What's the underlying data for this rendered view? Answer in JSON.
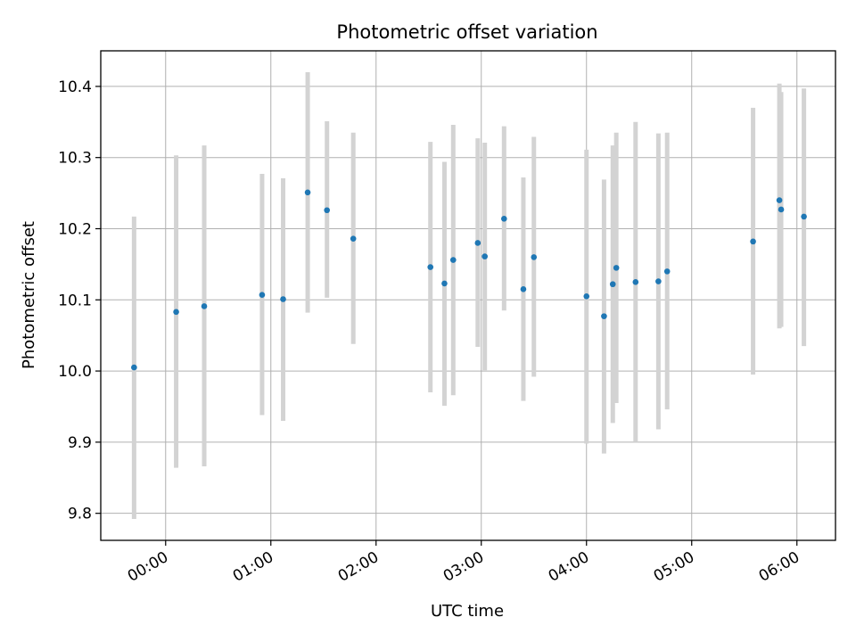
{
  "chart_data": {
    "type": "scatter",
    "title": "Photometric offset variation",
    "xlabel": "UTC time",
    "ylabel": "Photometric offset",
    "x_ticks": [
      "00:00",
      "01:00",
      "02:00",
      "03:00",
      "04:00",
      "05:00",
      "06:00"
    ],
    "y_ticks": [
      "9.8",
      "9.9",
      "10.0",
      "10.1",
      "10.2",
      "10.3",
      "10.4"
    ],
    "xlim": [
      "23:23",
      "06:22"
    ],
    "ylim": [
      9.762,
      10.45
    ],
    "grid": true,
    "colors": {
      "point": "#1f77b4",
      "errorbar": "#d3d3d3",
      "grid": "#b0b0b0",
      "axes": "#000000"
    },
    "points": [
      {
        "x": "23:42",
        "y": 10.005,
        "err_low": 9.792,
        "err_high": 10.217
      },
      {
        "x": "00:06",
        "y": 10.083,
        "err_low": 9.864,
        "err_high": 10.303
      },
      {
        "x": "00:22",
        "y": 10.091,
        "err_low": 9.866,
        "err_high": 10.317
      },
      {
        "x": "00:55",
        "y": 10.107,
        "err_low": 9.938,
        "err_high": 10.277
      },
      {
        "x": "01:07",
        "y": 10.101,
        "err_low": 9.93,
        "err_high": 10.271
      },
      {
        "x": "01:21",
        "y": 10.251,
        "err_low": 10.082,
        "err_high": 10.42
      },
      {
        "x": "01:32",
        "y": 10.226,
        "err_low": 10.103,
        "err_high": 10.351
      },
      {
        "x": "01:47",
        "y": 10.186,
        "err_low": 10.038,
        "err_high": 10.335
      },
      {
        "x": "02:31",
        "y": 10.146,
        "err_low": 9.97,
        "err_high": 10.322
      },
      {
        "x": "02:39",
        "y": 10.123,
        "err_low": 9.951,
        "err_high": 10.294
      },
      {
        "x": "02:44",
        "y": 10.156,
        "err_low": 9.966,
        "err_high": 10.346
      },
      {
        "x": "02:58",
        "y": 10.18,
        "err_low": 10.034,
        "err_high": 10.327
      },
      {
        "x": "03:02",
        "y": 10.161,
        "err_low": 10.001,
        "err_high": 10.321
      },
      {
        "x": "03:13",
        "y": 10.214,
        "err_low": 10.085,
        "err_high": 10.344
      },
      {
        "x": "03:24",
        "y": 10.115,
        "err_low": 9.958,
        "err_high": 10.272
      },
      {
        "x": "03:30",
        "y": 10.16,
        "err_low": 9.992,
        "err_high": 10.329
      },
      {
        "x": "04:00",
        "y": 10.105,
        "err_low": 9.898,
        "err_high": 10.311
      },
      {
        "x": "04:10",
        "y": 10.077,
        "err_low": 9.884,
        "err_high": 10.269
      },
      {
        "x": "04:15",
        "y": 10.122,
        "err_low": 9.927,
        "err_high": 10.317
      },
      {
        "x": "04:17",
        "y": 10.145,
        "err_low": 9.955,
        "err_high": 10.335
      },
      {
        "x": "04:28",
        "y": 10.125,
        "err_low": 9.9,
        "err_high": 10.35
      },
      {
        "x": "04:41",
        "y": 10.126,
        "err_low": 9.918,
        "err_high": 10.334
      },
      {
        "x": "04:46",
        "y": 10.14,
        "err_low": 9.946,
        "err_high": 10.335
      },
      {
        "x": "05:35",
        "y": 10.182,
        "err_low": 9.995,
        "err_high": 10.37
      },
      {
        "x": "05:50",
        "y": 10.24,
        "err_low": 10.06,
        "err_high": 10.404
      },
      {
        "x": "05:51",
        "y": 10.227,
        "err_low": 10.062,
        "err_high": 10.392
      },
      {
        "x": "06:04",
        "y": 10.217,
        "err_low": 10.035,
        "err_high": 10.397
      }
    ]
  }
}
